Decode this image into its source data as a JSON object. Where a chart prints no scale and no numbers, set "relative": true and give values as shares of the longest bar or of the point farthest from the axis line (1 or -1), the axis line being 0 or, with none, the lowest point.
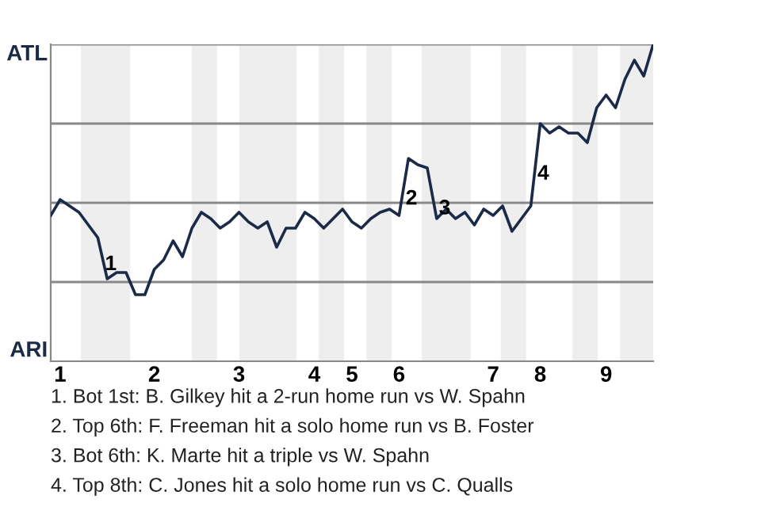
{
  "chart_data": {
    "type": "line",
    "relative": true,
    "categories": [
      null,
      "1",
      null,
      null,
      null,
      null,
      null,
      null,
      null,
      null,
      null,
      "2",
      null,
      null,
      null,
      null,
      null,
      null,
      null,
      null,
      "3",
      null,
      null,
      null,
      null,
      null,
      null,
      null,
      "4",
      null,
      null,
      null,
      "5",
      null,
      null,
      null,
      null,
      "6",
      null,
      null,
      null,
      null,
      null,
      null,
      null,
      null,
      null,
      "7",
      null,
      null,
      null,
      null,
      "8",
      null,
      null,
      null,
      null,
      null,
      null,
      "9",
      null,
      null,
      null,
      null,
      null
    ],
    "series": [
      {
        "color": "#1b2a47",
        "values": [
          0.46,
          0.51,
          0.49,
          0.47,
          0.43,
          0.39,
          0.26,
          0.28,
          0.28,
          0.21,
          0.21,
          0.29,
          0.32,
          0.38,
          0.33,
          0.42,
          0.47,
          0.45,
          0.42,
          0.44,
          0.47,
          0.44,
          0.42,
          0.44,
          0.36,
          0.42,
          0.42,
          0.47,
          0.45,
          0.42,
          0.45,
          0.48,
          0.44,
          0.42,
          0.45,
          0.47,
          0.48,
          0.46,
          0.64,
          0.62,
          0.61,
          0.45,
          0.48,
          0.45,
          0.47,
          0.43,
          0.48,
          0.46,
          0.49,
          0.41,
          0.45,
          0.49,
          0.75,
          0.72,
          0.74,
          0.72,
          0.72,
          0.69,
          0.8,
          0.84,
          0.8,
          0.89,
          0.95,
          0.9,
          1.0
        ]
      }
    ],
    "ref_lines": [
      {
        "axis": "y",
        "value": 0.25,
        "color": "#888888"
      },
      {
        "axis": "y",
        "value": 0.5,
        "color": "#888888"
      },
      {
        "axis": "y",
        "value": 0.75,
        "color": "#888888"
      },
      {
        "axis": "y",
        "value": 1.0,
        "color": "#888888"
      }
    ],
    "annotations": [
      "ATL",
      "ARI",
      "1",
      "2",
      "3",
      "4",
      "1. Bot 1st: B. Gilkey hit a 2-run home run vs W. Spahn",
      "2. Top 6th: F. Freeman hit a solo home run vs B. Foster",
      "3. Bot 6th: K. Marte hit a triple vs W. Spahn",
      "4. Top 8th: C. Jones hit a solo home run vs C. Qualls"
    ],
    "grid": false,
    "legend": false,
    "marker": "none",
    "line_style": "solid"
  }
}
